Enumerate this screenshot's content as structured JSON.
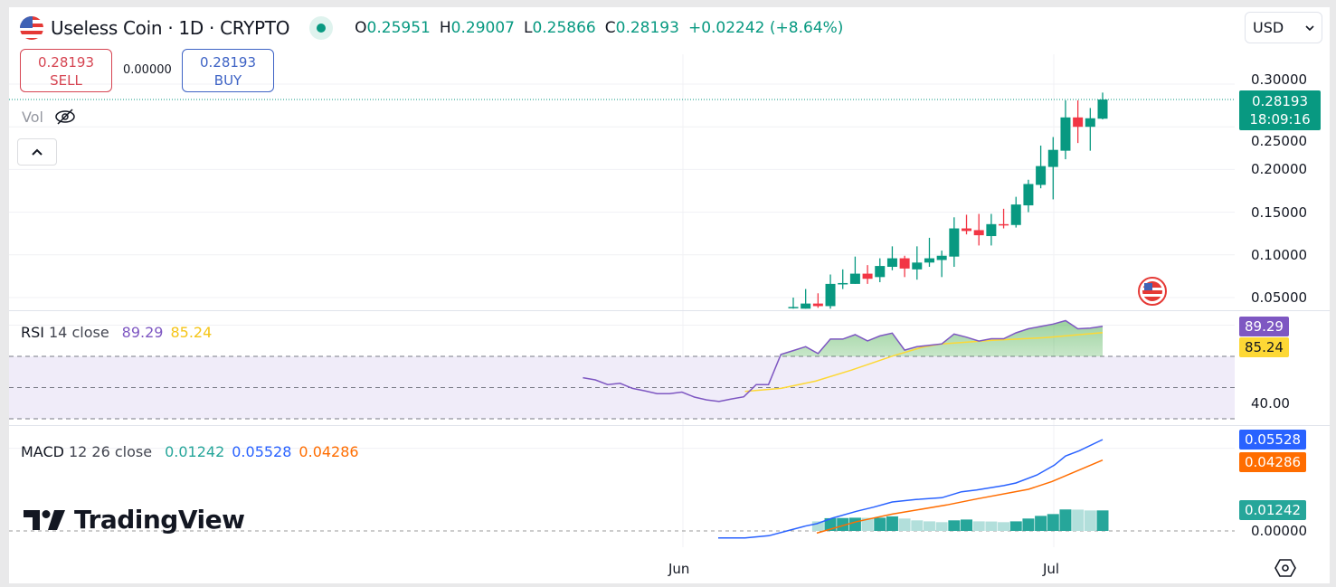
{
  "header": {
    "symbol": "Useless Coin · 1D · CRYPTO",
    "ohlc": [
      {
        "key": "O",
        "value": "0.25951"
      },
      {
        "key": "H",
        "value": "0.29007"
      },
      {
        "key": "L",
        "value": "0.25866"
      },
      {
        "key": "C",
        "value": "0.28193"
      }
    ],
    "change": "+0.02242 (+8.64%)",
    "currency": "USD"
  },
  "trade": {
    "sell_price": "0.28193",
    "sell_label": "SELL",
    "spread": "0.00000",
    "buy_price": "0.28193",
    "buy_label": "BUY"
  },
  "volume_label": "Vol",
  "price_axis": {
    "ticks": [
      "0.30000",
      "0.25000",
      "0.20000",
      "0.15000",
      "0.10000",
      "0.05000"
    ],
    "last_price": "0.28193",
    "countdown": "18:09:16"
  },
  "rsi": {
    "label": "RSI",
    "params": "14 close",
    "value": "89.29",
    "ma_value": "85.24",
    "axis_tick": "40.00"
  },
  "macd": {
    "label": "MACD",
    "params": "12 26 close",
    "histogram_value": "0.01242",
    "macd_value": "0.05528",
    "signal_value": "0.04286",
    "axis_tick": "0.00000"
  },
  "time_axis": [
    "Jun",
    "Jul"
  ],
  "branding": "TradingView",
  "colors": {
    "up": "#089981",
    "down": "#f23645",
    "rsi": "#7e57c2",
    "rsi_ma": "#fdd835",
    "macd": "#2962ff",
    "signal": "#ff6d00",
    "hist_up": "#26a69a",
    "hist_down": "#b2dfdb"
  },
  "chart_data": {
    "type": "candlestick",
    "price_range": [
      0.05,
      0.3
    ],
    "candles": [
      {
        "o": 0.038,
        "h": 0.05,
        "l": 0.037,
        "c": 0.039
      },
      {
        "o": 0.037,
        "h": 0.06,
        "l": 0.037,
        "c": 0.043
      },
      {
        "o": 0.043,
        "h": 0.055,
        "l": 0.038,
        "c": 0.04
      },
      {
        "o": 0.04,
        "h": 0.077,
        "l": 0.037,
        "c": 0.066
      },
      {
        "o": 0.066,
        "h": 0.083,
        "l": 0.06,
        "c": 0.067
      },
      {
        "o": 0.066,
        "h": 0.098,
        "l": 0.066,
        "c": 0.078
      },
      {
        "o": 0.078,
        "h": 0.088,
        "l": 0.066,
        "c": 0.072
      },
      {
        "o": 0.074,
        "h": 0.096,
        "l": 0.068,
        "c": 0.087
      },
      {
        "o": 0.086,
        "h": 0.11,
        "l": 0.082,
        "c": 0.096
      },
      {
        "o": 0.096,
        "h": 0.099,
        "l": 0.074,
        "c": 0.084
      },
      {
        "o": 0.083,
        "h": 0.11,
        "l": 0.071,
        "c": 0.091
      },
      {
        "o": 0.091,
        "h": 0.12,
        "l": 0.086,
        "c": 0.096
      },
      {
        "o": 0.094,
        "h": 0.105,
        "l": 0.074,
        "c": 0.099
      },
      {
        "o": 0.098,
        "h": 0.144,
        "l": 0.086,
        "c": 0.131
      },
      {
        "o": 0.131,
        "h": 0.147,
        "l": 0.124,
        "c": 0.128
      },
      {
        "o": 0.129,
        "h": 0.148,
        "l": 0.111,
        "c": 0.123
      },
      {
        "o": 0.122,
        "h": 0.148,
        "l": 0.111,
        "c": 0.136
      },
      {
        "o": 0.136,
        "h": 0.154,
        "l": 0.131,
        "c": 0.135
      },
      {
        "o": 0.135,
        "h": 0.168,
        "l": 0.132,
        "c": 0.159
      },
      {
        "o": 0.158,
        "h": 0.188,
        "l": 0.15,
        "c": 0.183
      },
      {
        "o": 0.182,
        "h": 0.228,
        "l": 0.178,
        "c": 0.204
      },
      {
        "o": 0.203,
        "h": 0.238,
        "l": 0.165,
        "c": 0.223
      },
      {
        "o": 0.222,
        "h": 0.281,
        "l": 0.212,
        "c": 0.261
      },
      {
        "o": 0.261,
        "h": 0.281,
        "l": 0.231,
        "c": 0.25
      },
      {
        "o": 0.25,
        "h": 0.272,
        "l": 0.222,
        "c": 0.26
      },
      {
        "o": 0.25951,
        "h": 0.29007,
        "l": 0.25866,
        "c": 0.28193
      }
    ],
    "rsi_start_index": -17,
    "rsi_values": [
      56.3,
      54.9,
      51.9,
      52.7,
      49.5,
      47.9,
      46.1,
      46.1,
      47.1,
      43.9,
      42.1,
      41.1,
      42.7,
      44.1,
      51.9,
      51.9,
      71.2,
      73.7,
      76.2,
      71.8,
      81.1,
      81.1,
      83.9,
      79.9,
      83.1,
      84.9,
      74.0,
      76.2,
      77.1,
      78.0,
      84.3,
      82.3,
      79.8,
      81.3,
      81.3,
      85.1,
      87.7,
      89.2,
      90.7,
      92.9,
      87.7,
      88.1,
      89.29
    ],
    "rsi_ma": [
      [
        -3.9,
        47.5
      ],
      [
        -1,
        49.5
      ],
      [
        1.8,
        54.1
      ],
      [
        4.7,
        61.2
      ],
      [
        8.1,
        70.4
      ],
      [
        10.4,
        75.8
      ],
      [
        12,
        78.0
      ],
      [
        16.1,
        80.3
      ],
      [
        20.4,
        82.0
      ],
      [
        25,
        85.24
      ]
    ],
    "rsi_levels": [
      70,
      50,
      30
    ],
    "macd_line": [
      [
        -6.07,
        -0.0042
      ],
      [
        -3.9,
        -0.0042
      ],
      [
        -1.97,
        -0.0029
      ],
      [
        -0.27,
        0.0005
      ],
      [
        0.95,
        0.0029
      ],
      [
        1.9,
        0.0044
      ],
      [
        3.15,
        0.0077
      ],
      [
        5.1,
        0.0119
      ],
      [
        6.5,
        0.0144
      ],
      [
        8.0,
        0.0175
      ],
      [
        9.9,
        0.019
      ],
      [
        12.0,
        0.0201
      ],
      [
        13.6,
        0.0237
      ],
      [
        14.8,
        0.0248
      ],
      [
        17.0,
        0.0274
      ],
      [
        18.0,
        0.029
      ],
      [
        19.7,
        0.0339
      ],
      [
        21.1,
        0.0398
      ],
      [
        22.0,
        0.0453
      ],
      [
        23.1,
        0.0485
      ],
      [
        25,
        0.05528
      ]
    ],
    "signal_line": [
      [
        1.9,
        -0.0013
      ],
      [
        5.1,
        0.0056
      ],
      [
        8.0,
        0.0102
      ],
      [
        12.4,
        0.0157
      ],
      [
        14.8,
        0.0193
      ],
      [
        19.0,
        0.0252
      ],
      [
        20.9,
        0.0299
      ],
      [
        25,
        0.04286
      ]
    ],
    "histogram_start_index": 2,
    "histogram": [
      0.0058,
      0.0077,
      0.0078,
      0.008,
      0.0079,
      0.008,
      0.0088,
      0.0075,
      0.0064,
      0.0058,
      0.0053,
      0.0064,
      0.0069,
      0.0058,
      0.0057,
      0.0053,
      0.0058,
      0.0075,
      0.0091,
      0.0102,
      0.013,
      0.0129,
      0.0124,
      0.01242
    ]
  }
}
